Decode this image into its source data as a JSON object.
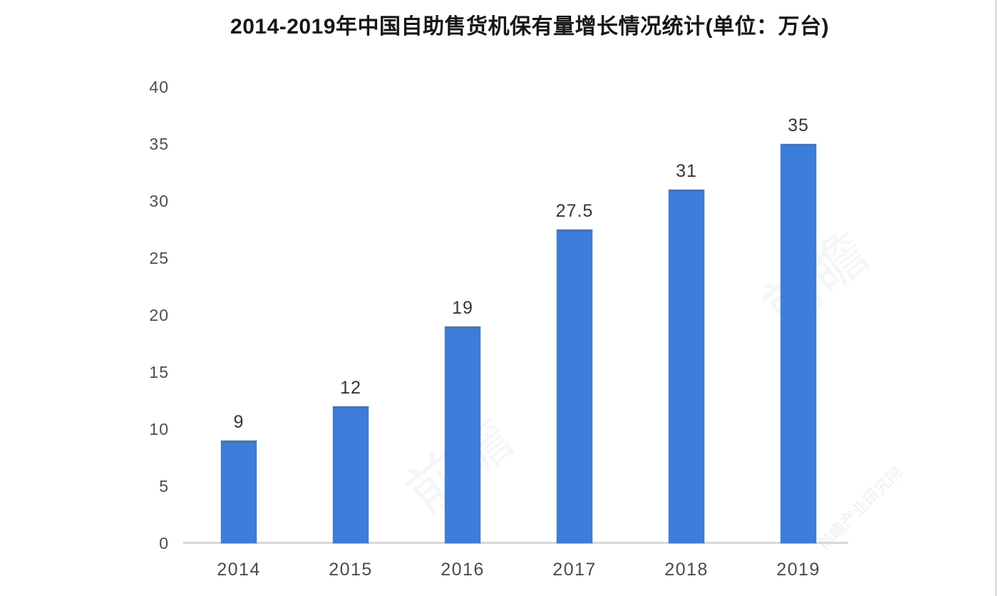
{
  "chart_data": {
    "type": "bar",
    "title": "2014-2019年中国自助售货机保有量增长情况统计(单位：万台)",
    "categories": [
      "2014",
      "2015",
      "2016",
      "2017",
      "2018",
      "2019"
    ],
    "values": [
      9,
      12,
      19,
      27.5,
      31,
      35
    ],
    "value_labels": [
      "9",
      "12",
      "19",
      "27.5",
      "31",
      "35"
    ],
    "series_name": "中国自助售货机保有量",
    "unit": "万台",
    "xlabel": "",
    "ylabel": "",
    "y_ticks": [
      40,
      35,
      30,
      25,
      20,
      15,
      10,
      5,
      0
    ],
    "ylim": [
      0,
      40
    ],
    "grid": false,
    "legend": false,
    "bar_color": "#3b7dd8",
    "axis_line_color": "#d8d8d8"
  },
  "watermark": {
    "logo_text": "前瞻",
    "full_text": "前瞻产业研究院"
  }
}
